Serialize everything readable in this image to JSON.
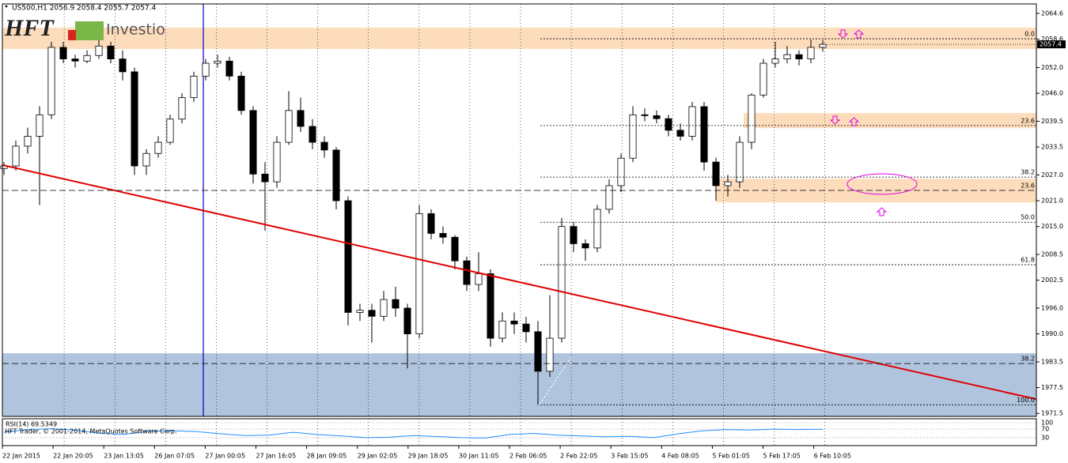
{
  "chart_data": {
    "type": "candlestick",
    "header": "US500,H1  2056.9 2058.4 2055.7 2057.4",
    "logo": {
      "mark": "HFT",
      "name": "Investio"
    },
    "ylim": [
      1970.8,
      2066.8
    ],
    "yticks": [
      2064.6,
      2058.6,
      {
        "value": 2052,
        "label": "2052.0"
      },
      {
        "value": 2046,
        "label": "2046.0"
      },
      2039.5,
      2033.5,
      {
        "value": 2027,
        "label": "2027.0"
      },
      {
        "value": 2021,
        "label": "2021.0"
      },
      {
        "value": 2015,
        "label": "2015.0"
      },
      2008.5,
      2002.5,
      {
        "value": 1996,
        "label": "1996.0"
      },
      {
        "value": 1990,
        "label": "1990.0"
      },
      1983.5,
      1977.5,
      1971.5
    ],
    "x_labels": [
      "22 Jan 2015",
      "22 Jan 20:05",
      "23 Jan 13:05",
      "26 Jan 07:05",
      "27 Jan 00:05",
      "27 Jan 16:05",
      "28 Jan 09:05",
      "29 Jan 02:05",
      "29 Jan 18:05",
      "30 Jan 11:05",
      "2 Feb 06:05",
      "2 Feb 22:05",
      "3 Feb 15:05",
      "4 Feb 08:05",
      "5 Feb 01:05",
      "5 Feb 17:05",
      "6 Feb 10:05"
    ],
    "grid": true,
    "up_color": "#ffffff",
    "down_color": "#000000",
    "candles": [
      [
        2028.5,
        2030,
        2027,
        2029.1
      ],
      [
        2029.1,
        2035,
        2028,
        2033.7
      ],
      [
        2033.7,
        2038,
        2032,
        2036
      ],
      [
        2036,
        2043,
        2020,
        2041
      ],
      [
        2041,
        2058,
        2040,
        2056.7
      ],
      [
        2056.7,
        2058,
        2053,
        2054
      ],
      [
        2054,
        2055,
        2052,
        2053.5
      ],
      [
        2053.5,
        2056,
        2053,
        2054.8
      ],
      [
        2054.8,
        2058.5,
        2054,
        2057
      ],
      [
        2057,
        2058,
        2053,
        2054
      ],
      [
        2054,
        2056,
        2049,
        2051
      ],
      [
        2051,
        2052,
        2027,
        2029.1
      ],
      [
        2029.1,
        2033,
        2027,
        2032
      ],
      [
        2032,
        2036,
        2031,
        2034.6
      ],
      [
        2034.6,
        2041,
        2034,
        2040
      ],
      [
        2040,
        2046,
        2039,
        2045
      ],
      [
        2045,
        2051,
        2044,
        2050
      ],
      [
        2050,
        2054,
        2049,
        2053
      ],
      [
        2053,
        2055,
        2052,
        2053.5
      ],
      [
        2053.5,
        2054.5,
        2049,
        2050
      ],
      [
        2050,
        2051,
        2041,
        2042
      ],
      [
        2042,
        2043,
        2025,
        2027.2
      ],
      [
        2027.2,
        2030,
        2014,
        2025.4
      ],
      [
        2025.4,
        2036,
        2024,
        2034.6
      ],
      [
        2034.6,
        2046.5,
        2034,
        2042
      ],
      [
        2042,
        2045,
        2037,
        2038.3
      ],
      [
        2038.3,
        2040,
        2033,
        2034.6
      ],
      [
        2034.6,
        2036,
        2031,
        2032.8
      ],
      [
        2032.8,
        2033.5,
        2019,
        2021
      ],
      [
        2021,
        2022,
        1992,
        1995
      ],
      [
        1995,
        1997,
        1993,
        1995.5
      ],
      [
        1995.5,
        1997,
        1988,
        1994.1
      ],
      [
        1994.1,
        2000,
        1993,
        1998
      ],
      [
        1998,
        2001,
        1994,
        1996
      ],
      [
        1996,
        1997,
        1982,
        1990
      ],
      [
        1990,
        2020,
        1989,
        2018
      ],
      [
        2018,
        2019,
        2012,
        2013.4
      ],
      [
        2013.4,
        2015,
        2011,
        2012.5
      ],
      [
        2012.5,
        2013,
        2005,
        2007
      ],
      [
        2007,
        2008,
        2000,
        2001.5
      ],
      [
        2001.5,
        2009,
        2000,
        2004
      ],
      [
        2004,
        2005,
        1987,
        1989
      ],
      [
        1989,
        1995,
        1988,
        1993
      ],
      [
        1993,
        1995,
        1990,
        1992.3
      ],
      [
        1992.3,
        1994,
        1988,
        1990.5
      ],
      [
        1990.5,
        1993,
        1973.5,
        1981.3
      ],
      [
        1981.3,
        1999,
        1980,
        1989
      ],
      [
        1989,
        2017,
        1988,
        2015
      ],
      [
        2015,
        2016,
        2009,
        2011
      ],
      [
        2011,
        2012,
        2007,
        2010
      ],
      [
        2010,
        2020,
        2009,
        2019
      ],
      [
        2019,
        2026,
        2018,
        2024.5
      ],
      [
        2024.5,
        2032,
        2023,
        2030.9
      ],
      [
        2030.9,
        2043,
        2030,
        2041
      ],
      [
        2041,
        2042.5,
        2039.5,
        2040.8
      ],
      [
        2040.8,
        2042,
        2039,
        2040.1
      ],
      [
        2040.1,
        2041,
        2036,
        2037.4
      ],
      [
        2037.4,
        2039,
        2035,
        2036
      ],
      [
        2036,
        2044,
        2035,
        2042.9
      ],
      [
        2042.9,
        2044,
        2028,
        2030
      ],
      [
        2030,
        2031,
        2021,
        2024.5
      ],
      [
        2024.5,
        2027,
        2022,
        2025.4
      ],
      [
        2025.4,
        2036,
        2024,
        2034.6
      ],
      [
        2034.6,
        2046,
        2033,
        2045.6
      ],
      [
        2045.6,
        2054,
        2045,
        2053
      ],
      [
        2053,
        2058,
        2052,
        2054
      ],
      [
        2054,
        2057,
        2053,
        2055
      ],
      [
        2055,
        2056,
        2052.5,
        2054
      ],
      [
        2054,
        2058.5,
        2053,
        2056.7
      ],
      [
        2056.7,
        2058.4,
        2055.7,
        2057.4
      ]
    ],
    "current_price": 2057.4,
    "trend_line": {
      "color": "#e00000",
      "start": 2029.3,
      "end": 1974.8
    },
    "zones": [
      {
        "top": 2061.3,
        "bottom": 2056.3,
        "color": "#fddcbc",
        "from": "left"
      },
      {
        "top": 2041.4,
        "bottom": 2037.9,
        "color": "#fddcbc",
        "from": "right"
      },
      {
        "top": 2026.1,
        "bottom": 2020.6,
        "color": "#fddcbc",
        "from": "right2"
      },
      {
        "top": 1985.5,
        "bottom": 1970.8,
        "color": "#b0c4de",
        "from": "left"
      }
    ],
    "levels": [
      {
        "label": "0.0",
        "price": 2058.7,
        "style": "dotted"
      },
      {
        "label": "23.6",
        "price": 2038.5,
        "style": "dotted"
      },
      {
        "label": "38.2",
        "price": 2026.5,
        "style": "dotted"
      },
      {
        "label": "23.6",
        "price": 2023.4,
        "style": "dashed"
      },
      {
        "label": "50.0",
        "price": 2016.0,
        "style": "dotted"
      },
      {
        "label": "61.8",
        "price": 2006.1,
        "style": "dotted"
      },
      {
        "label": "38.2",
        "price": 1983.1,
        "style": "dashed"
      },
      {
        "label": "100.0",
        "price": 1973.5,
        "style": "dotted"
      }
    ],
    "rsi": {
      "label": "RSI(14) 69.5349",
      "color": "#1e90ff",
      "ylim": [
        0,
        100
      ],
      "yticks": [
        100,
        70,
        30
      ],
      "values": [
        55,
        68,
        72,
        65,
        50,
        45,
        60,
        62,
        58,
        48,
        40,
        42,
        55,
        45,
        38,
        30,
        32,
        40,
        35,
        30,
        28,
        45,
        50,
        42,
        38,
        34,
        36,
        30,
        48,
        62,
        68,
        66,
        70,
        68,
        69.5
      ]
    },
    "watermark": "HFT Trader, © 2001-2014, MetaQuotes Software Corp."
  }
}
